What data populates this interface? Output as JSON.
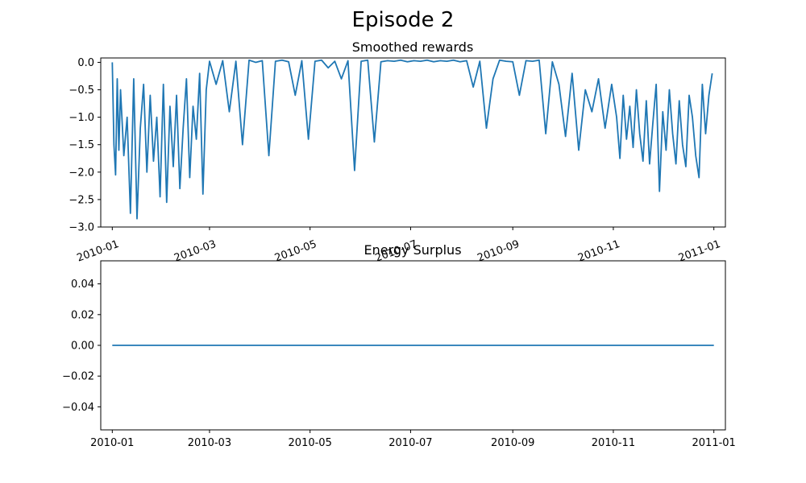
{
  "figure_title": "Episode 2",
  "colors": {
    "series": "#1f77b4",
    "axes": "#000000",
    "background": "#ffffff"
  },
  "chart_data": [
    {
      "type": "line",
      "title": "Smoothed rewards",
      "xlabel": "",
      "ylabel": "",
      "x_axis_type": "date",
      "xlim": [
        "2009-12-25",
        "2011-01-08"
      ],
      "ylim": [
        -3.0,
        0.08
      ],
      "grid": false,
      "legend": "none",
      "x_tick_labels": [
        "2010-01",
        "2010-03",
        "2010-05",
        "2010-07",
        "2010-09",
        "2010-11",
        "2011-01"
      ],
      "x_tick_values": [
        "2010-01-01",
        "2010-03-01",
        "2010-05-01",
        "2010-07-01",
        "2010-09-01",
        "2010-11-01",
        "2011-01-01"
      ],
      "x_tick_rotation": 20,
      "y_tick_labels": [
        "0.0",
        "−0.5",
        "−1.0",
        "−1.5",
        "−2.0",
        "−2.5",
        "−3.0"
      ],
      "y_tick_values": [
        0.0,
        -0.5,
        -1.0,
        -1.5,
        -2.0,
        -2.5,
        -3.0
      ],
      "series": [
        {
          "x": [
            "2010-01-01",
            "2010-01-02",
            "2010-01-03",
            "2010-01-04",
            "2010-01-05",
            "2010-01-06",
            "2010-01-08",
            "2010-01-10",
            "2010-01-12",
            "2010-01-14",
            "2010-01-16",
            "2010-01-18",
            "2010-01-20",
            "2010-01-22",
            "2010-01-24",
            "2010-01-26",
            "2010-01-28",
            "2010-01-30",
            "2010-02-01",
            "2010-02-03",
            "2010-02-05",
            "2010-02-07",
            "2010-02-09",
            "2010-02-11",
            "2010-02-13",
            "2010-02-15",
            "2010-02-17",
            "2010-02-19",
            "2010-02-21",
            "2010-02-23",
            "2010-02-25",
            "2010-02-27",
            "2010-03-01",
            "2010-03-05",
            "2010-03-09",
            "2010-03-13",
            "2010-03-17",
            "2010-03-21",
            "2010-03-25",
            "2010-03-29",
            "2010-04-02",
            "2010-04-06",
            "2010-04-10",
            "2010-04-14",
            "2010-04-18",
            "2010-04-22",
            "2010-04-26",
            "2010-04-30",
            "2010-05-04",
            "2010-05-08",
            "2010-05-12",
            "2010-05-16",
            "2010-05-20",
            "2010-05-24",
            "2010-05-28",
            "2010-06-01",
            "2010-06-05",
            "2010-06-09",
            "2010-06-13",
            "2010-06-17",
            "2010-06-21",
            "2010-06-25",
            "2010-06-29",
            "2010-07-03",
            "2010-07-07",
            "2010-07-11",
            "2010-07-15",
            "2010-07-19",
            "2010-07-23",
            "2010-07-27",
            "2010-07-31",
            "2010-08-04",
            "2010-08-08",
            "2010-08-12",
            "2010-08-16",
            "2010-08-20",
            "2010-08-24",
            "2010-08-28",
            "2010-09-01",
            "2010-09-05",
            "2010-09-09",
            "2010-09-13",
            "2010-09-17",
            "2010-09-21",
            "2010-09-25",
            "2010-09-29",
            "2010-10-03",
            "2010-10-07",
            "2010-10-11",
            "2010-10-15",
            "2010-10-19",
            "2010-10-23",
            "2010-10-27",
            "2010-10-31",
            "2010-11-03",
            "2010-11-05",
            "2010-11-07",
            "2010-11-09",
            "2010-11-11",
            "2010-11-13",
            "2010-11-15",
            "2010-11-17",
            "2010-11-19",
            "2010-11-21",
            "2010-11-23",
            "2010-11-25",
            "2010-11-27",
            "2010-11-29",
            "2010-12-01",
            "2010-12-03",
            "2010-12-05",
            "2010-12-07",
            "2010-12-09",
            "2010-12-11",
            "2010-12-13",
            "2010-12-15",
            "2010-12-17",
            "2010-12-19",
            "2010-12-21",
            "2010-12-23",
            "2010-12-25",
            "2010-12-27",
            "2010-12-29",
            "2010-12-31"
          ],
          "values": [
            0.0,
            -1.5,
            -2.05,
            -0.3,
            -1.6,
            -0.5,
            -1.7,
            -1.0,
            -2.75,
            -0.3,
            -2.85,
            -1.2,
            -0.4,
            -2.0,
            -0.6,
            -1.8,
            -1.0,
            -2.45,
            -0.4,
            -2.55,
            -0.8,
            -1.9,
            -0.6,
            -2.3,
            -1.2,
            -0.3,
            -2.1,
            -0.8,
            -1.4,
            -0.2,
            -2.4,
            -0.5,
            0.02,
            -0.4,
            0.03,
            -0.9,
            0.02,
            -1.5,
            0.04,
            0.0,
            0.03,
            -1.7,
            0.02,
            0.04,
            0.01,
            -0.6,
            0.03,
            -1.4,
            0.02,
            0.04,
            -0.1,
            0.02,
            -0.3,
            0.03,
            -1.97,
            0.02,
            0.04,
            -1.45,
            0.01,
            0.03,
            0.02,
            0.04,
            0.01,
            0.03,
            0.02,
            0.04,
            0.01,
            0.03,
            0.02,
            0.04,
            0.01,
            0.03,
            -0.45,
            0.02,
            -1.2,
            -0.3,
            0.04,
            0.02,
            0.01,
            -0.6,
            0.03,
            0.02,
            0.04,
            -1.3,
            0.01,
            -0.4,
            -1.35,
            -0.2,
            -1.6,
            -0.5,
            -0.9,
            -0.3,
            -1.2,
            -0.4,
            -1.0,
            -1.75,
            -0.6,
            -1.4,
            -0.8,
            -1.55,
            -0.5,
            -1.3,
            -1.8,
            -0.7,
            -1.85,
            -1.1,
            -0.4,
            -2.35,
            -0.9,
            -1.6,
            -0.5,
            -1.3,
            -1.85,
            -0.7,
            -1.5,
            -1.9,
            -0.6,
            -1.0,
            -1.7,
            -2.1,
            -0.4,
            -1.3,
            -0.6,
            -0.2
          ]
        }
      ]
    },
    {
      "type": "line",
      "title": "Energy Surplus",
      "xlabel": "",
      "ylabel": "",
      "x_axis_type": "date",
      "xlim": [
        "2009-12-25",
        "2011-01-08"
      ],
      "ylim": [
        -0.055,
        0.055
      ],
      "grid": false,
      "legend": "none",
      "x_tick_labels": [
        "2010-01",
        "2010-03",
        "2010-05",
        "2010-07",
        "2010-09",
        "2010-11",
        "2011-01"
      ],
      "x_tick_values": [
        "2010-01-01",
        "2010-03-01",
        "2010-05-01",
        "2010-07-01",
        "2010-09-01",
        "2010-11-01",
        "2011-01-01"
      ],
      "x_tick_rotation": 0,
      "y_tick_labels": [
        "0.04",
        "0.02",
        "0.00",
        "−0.02",
        "−0.04"
      ],
      "y_tick_values": [
        0.04,
        0.02,
        0.0,
        -0.02,
        -0.04
      ],
      "series": [
        {
          "x": [
            "2010-01-01",
            "2011-01-01"
          ],
          "values": [
            0.0,
            0.0
          ]
        }
      ]
    }
  ]
}
